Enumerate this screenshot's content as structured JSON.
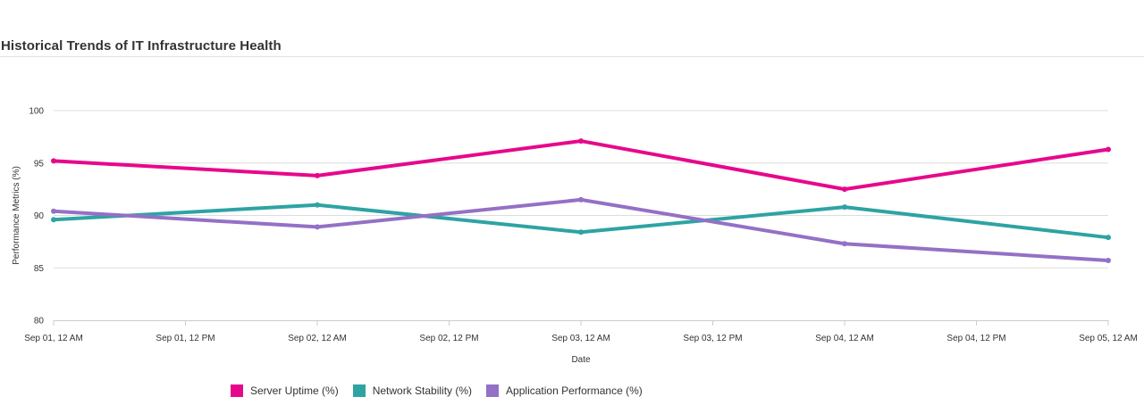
{
  "chart_data": {
    "type": "line",
    "title": "Historical Trends of IT Infrastructure Health",
    "xlabel": "Date",
    "ylabel": "Performance Metrics (%)",
    "x": [
      "Sep 01, 12 AM",
      "Sep 02, 12 AM",
      "Sep 03, 12 AM",
      "Sep 04, 12 AM",
      "Sep 05, 12 AM"
    ],
    "x_ticks": [
      "Sep 01, 12 AM",
      "Sep 01, 12 PM",
      "Sep 02, 12 AM",
      "Sep 02, 12 PM",
      "Sep 03, 12 AM",
      "Sep 03, 12 PM",
      "Sep 04, 12 AM",
      "Sep 04, 12 PM",
      "Sep 05, 12 AM"
    ],
    "ylim": [
      80,
      100
    ],
    "y_ticks": [
      80,
      85,
      90,
      95,
      100
    ],
    "grid": true,
    "legend_position": "bottom",
    "series": [
      {
        "name": "Server Uptime (%)",
        "color": "#e6088c",
        "values": [
          95.2,
          93.8,
          97.1,
          92.5,
          96.3
        ]
      },
      {
        "name": "Network Stability (%)",
        "color": "#2ea3a3",
        "values": [
          89.6,
          91.0,
          88.4,
          90.8,
          87.9
        ]
      },
      {
        "name": "Application Performance (%)",
        "color": "#9470c6",
        "values": [
          90.4,
          88.9,
          91.5,
          87.3,
          85.7
        ]
      }
    ]
  }
}
